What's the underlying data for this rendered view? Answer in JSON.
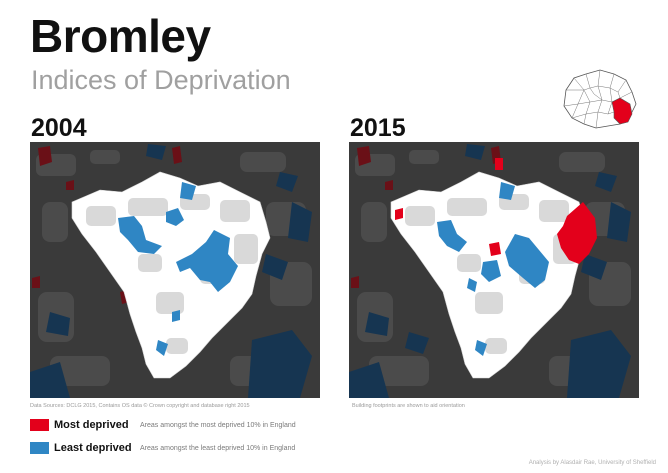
{
  "header": {
    "title": "Bromley",
    "subtitle": "Indices of Deprivation"
  },
  "maps": [
    {
      "year": "2004",
      "caption": "Data Sources: DCLG 2015, Contains OS data © Crown copyright and database right 2015"
    },
    {
      "year": "2015",
      "caption": "Building footprints are shown to aid orientation"
    }
  ],
  "legend": {
    "most": {
      "label": "Most deprived",
      "description": "Areas amongst the most deprived 10% in England",
      "color": "#e3001b"
    },
    "least": {
      "label": "Least deprived",
      "description": "Areas amongst the least deprived 10% in England",
      "color": "#2f86c4"
    }
  },
  "credit": "Analysis by Alasdair Rae, University of Sheffield",
  "colors": {
    "background_map": "#3b3b3b",
    "borough_fill": "#ffffff",
    "outside_least": "#15324b",
    "outside_most": "#5c0f14"
  }
}
